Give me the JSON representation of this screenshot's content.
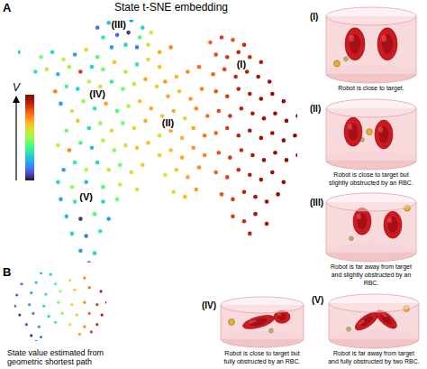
{
  "chart_data": [
    {
      "type": "scatter",
      "panel": "A",
      "title": "State t-SNE embedding",
      "tick_labels": false,
      "color_label": "V",
      "color_range": [
        0,
        1
      ],
      "points": [
        [
          0,
          86,
          0.3
        ],
        [
          28,
          96,
          0.15
        ],
        [
          32,
          98,
          0.25
        ],
        [
          36,
          97,
          0.1
        ],
        [
          40,
          99,
          0.2
        ],
        [
          44,
          96,
          0.3
        ],
        [
          30,
          92,
          0.35
        ],
        [
          35,
          93,
          0.12
        ],
        [
          39,
          94,
          0.05
        ],
        [
          43,
          92,
          0.4
        ],
        [
          47,
          94,
          0.55
        ],
        [
          33,
          88,
          0.2
        ],
        [
          38,
          89,
          0.3
        ],
        [
          42,
          88,
          0.15
        ],
        [
          46,
          89,
          0.6
        ],
        [
          8,
          84,
          0.45
        ],
        [
          12,
          86,
          0.3
        ],
        [
          16,
          83,
          0.55
        ],
        [
          20,
          85,
          0.2
        ],
        [
          24,
          87,
          0.6
        ],
        [
          28,
          84,
          0.4
        ],
        [
          50,
          86,
          0.7
        ],
        [
          54,
          88,
          0.75
        ],
        [
          6,
          78,
          0.35
        ],
        [
          10,
          79,
          0.6
        ],
        [
          14,
          77,
          0.25
        ],
        [
          18,
          80,
          0.5
        ],
        [
          22,
          78,
          0.85
        ],
        [
          26,
          80,
          0.3
        ],
        [
          30,
          79,
          0.45
        ],
        [
          34,
          82,
          0.65
        ],
        [
          38,
          78,
          0.5
        ],
        [
          42,
          81,
          0.35
        ],
        [
          46,
          83,
          0.6
        ],
        [
          50,
          80,
          0.65
        ],
        [
          13,
          70,
          0.75
        ],
        [
          17,
          72,
          0.4
        ],
        [
          21,
          71,
          0.3
        ],
        [
          25,
          74,
          0.55
        ],
        [
          29,
          72,
          0.6
        ],
        [
          33,
          74,
          0.35
        ],
        [
          37,
          71,
          0.45
        ],
        [
          41,
          73,
          0.55
        ],
        [
          45,
          75,
          0.7
        ],
        [
          49,
          72,
          0.62
        ],
        [
          15,
          65,
          0.2
        ],
        [
          19,
          62,
          0.6
        ],
        [
          23,
          66,
          0.5
        ],
        [
          27,
          63,
          0.35
        ],
        [
          31,
          65,
          0.7
        ],
        [
          35,
          62,
          0.4
        ],
        [
          39,
          64,
          0.55
        ],
        [
          43,
          66,
          0.65
        ],
        [
          47,
          63,
          0.7
        ],
        [
          17,
          54,
          0.45
        ],
        [
          21,
          58,
          0.65
        ],
        [
          25,
          55,
          0.3
        ],
        [
          29,
          57,
          0.5
        ],
        [
          33,
          54,
          0.6
        ],
        [
          37,
          57,
          0.45
        ],
        [
          41,
          55,
          0.62
        ],
        [
          45,
          58,
          0.68
        ],
        [
          14,
          48,
          0.55
        ],
        [
          18,
          46,
          0.75
        ],
        [
          22,
          49,
          0.4
        ],
        [
          26,
          47,
          0.25
        ],
        [
          30,
          50,
          0.55
        ],
        [
          34,
          46,
          0.5
        ],
        [
          38,
          48,
          0.6
        ],
        [
          42,
          47,
          0.65
        ],
        [
          46,
          49,
          0.66
        ],
        [
          16,
          38,
          0.2
        ],
        [
          20,
          41,
          0.35
        ],
        [
          24,
          38,
          0.55
        ],
        [
          28,
          41,
          0.3
        ],
        [
          32,
          38,
          0.6
        ],
        [
          36,
          40,
          0.45
        ],
        [
          40,
          37,
          0.58
        ],
        [
          44,
          40,
          0.63
        ],
        [
          14,
          33,
          0.3
        ],
        [
          19,
          31,
          0.5
        ],
        [
          24,
          33,
          0.25
        ],
        [
          30,
          31,
          0.4
        ],
        [
          36,
          32,
          0.55
        ],
        [
          42,
          30,
          0.6
        ],
        [
          15,
          26,
          0.2
        ],
        [
          20,
          25,
          0.35
        ],
        [
          25,
          27,
          0.1
        ],
        [
          30,
          25,
          0.3
        ],
        [
          35,
          26,
          0.45
        ],
        [
          17,
          19,
          0.25
        ],
        [
          22,
          18,
          0.05
        ],
        [
          27,
          20,
          0.4
        ],
        [
          32,
          18,
          0.2
        ],
        [
          19,
          12,
          0.3
        ],
        [
          24,
          11,
          0.15
        ],
        [
          29,
          13,
          0.35
        ],
        [
          22,
          5,
          0.2
        ],
        [
          27,
          4,
          0.3
        ],
        [
          25,
          0,
          0.15
        ],
        [
          52,
          74,
          0.72
        ],
        [
          56,
          76,
          0.68
        ],
        [
          60,
          78,
          0.74
        ],
        [
          64,
          80,
          0.78
        ],
        [
          53,
          68,
          0.7
        ],
        [
          57,
          70,
          0.66
        ],
        [
          61,
          67,
          0.72
        ],
        [
          65,
          71,
          0.76
        ],
        [
          51,
          60,
          0.65
        ],
        [
          55,
          62,
          0.7
        ],
        [
          59,
          59,
          0.62
        ],
        [
          63,
          63,
          0.75
        ],
        [
          67,
          60,
          0.78
        ],
        [
          50,
          52,
          0.6
        ],
        [
          54,
          54,
          0.72
        ],
        [
          58,
          51,
          0.68
        ],
        [
          62,
          55,
          0.7
        ],
        [
          66,
          52,
          0.77
        ],
        [
          50,
          44,
          0.62
        ],
        [
          54,
          46,
          0.66
        ],
        [
          58,
          43,
          0.7
        ],
        [
          62,
          47,
          0.73
        ],
        [
          66,
          44,
          0.75
        ],
        [
          52,
          36,
          0.58
        ],
        [
          56,
          38,
          0.65
        ],
        [
          60,
          35,
          0.7
        ],
        [
          64,
          39,
          0.74
        ],
        [
          55,
          29,
          0.6
        ],
        [
          59,
          27,
          0.66
        ],
        [
          63,
          30,
          0.72
        ],
        [
          68,
          90,
          0.8
        ],
        [
          72,
          92,
          0.85
        ],
        [
          76,
          91,
          0.82
        ],
        [
          80,
          89,
          0.88
        ],
        [
          70,
          85,
          0.83
        ],
        [
          74,
          84,
          0.86
        ],
        [
          78,
          86,
          0.9
        ],
        [
          82,
          84,
          0.88
        ],
        [
          86,
          82,
          0.92
        ],
        [
          69,
          77,
          0.8
        ],
        [
          73,
          79,
          0.84
        ],
        [
          77,
          76,
          0.88
        ],
        [
          81,
          78,
          0.9
        ],
        [
          85,
          76,
          0.93
        ],
        [
          89,
          74,
          0.95
        ],
        [
          70,
          70,
          0.82
        ],
        [
          74,
          68,
          0.86
        ],
        [
          78,
          71,
          0.89
        ],
        [
          82,
          69,
          0.92
        ],
        [
          86,
          67,
          0.95
        ],
        [
          90,
          69,
          0.96
        ],
        [
          94,
          66,
          0.98
        ],
        [
          71,
          62,
          0.83
        ],
        [
          75,
          60,
          0.87
        ],
        [
          79,
          63,
          0.9
        ],
        [
          83,
          61,
          0.93
        ],
        [
          87,
          59,
          0.96
        ],
        [
          91,
          61,
          0.97
        ],
        [
          95,
          58,
          0.99
        ],
        [
          99,
          60,
          1.0
        ],
        [
          70,
          53,
          0.8
        ],
        [
          74,
          55,
          0.85
        ],
        [
          78,
          52,
          0.9
        ],
        [
          82,
          54,
          0.93
        ],
        [
          86,
          51,
          0.95
        ],
        [
          90,
          53,
          0.97
        ],
        [
          94,
          50,
          0.98
        ],
        [
          98,
          52,
          1.0
        ],
        [
          71,
          45,
          0.82
        ],
        [
          75,
          43,
          0.86
        ],
        [
          79,
          46,
          0.88
        ],
        [
          83,
          44,
          0.92
        ],
        [
          87,
          42,
          0.95
        ],
        [
          91,
          45,
          0.97
        ],
        [
          95,
          42,
          0.99
        ],
        [
          99,
          44,
          1.0
        ],
        [
          70,
          37,
          0.8
        ],
        [
          74,
          35,
          0.84
        ],
        [
          78,
          38,
          0.88
        ],
        [
          82,
          36,
          0.91
        ],
        [
          86,
          34,
          0.94
        ],
        [
          90,
          37,
          0.96
        ],
        [
          94,
          33,
          0.98
        ],
        [
          72,
          28,
          0.82
        ],
        [
          76,
          26,
          0.86
        ],
        [
          80,
          29,
          0.9
        ],
        [
          84,
          27,
          0.92
        ],
        [
          88,
          25,
          0.95
        ],
        [
          92,
          28,
          0.97
        ],
        [
          76,
          19,
          0.85
        ],
        [
          80,
          17,
          0.88
        ],
        [
          84,
          20,
          0.92
        ],
        [
          88,
          16,
          0.94
        ],
        [
          82,
          12,
          0.9
        ]
      ],
      "annotations": [
        {
          "text": "(I)",
          "x": 79,
          "y": 81
        },
        {
          "text": "(II)",
          "x": 53,
          "y": 57
        },
        {
          "text": "(III)",
          "x": 35.5,
          "y": 97
        },
        {
          "text": "(IV)",
          "x": 28,
          "y": 69
        },
        {
          "text": "(V)",
          "x": 24,
          "y": 27
        }
      ]
    },
    {
      "type": "scatter",
      "panel": "B",
      "tick_labels": false,
      "color_range": [
        0,
        1
      ],
      "caption": [
        "State value estimated from",
        "geometric shortest path"
      ],
      "points": [
        [
          30,
          95,
          0.2
        ],
        [
          40,
          93,
          0.3
        ],
        [
          10,
          80,
          0.15
        ],
        [
          25,
          82,
          0.25
        ],
        [
          45,
          80,
          0.4
        ],
        [
          60,
          85,
          0.6
        ],
        [
          75,
          88,
          0.75
        ],
        [
          5,
          65,
          0.1
        ],
        [
          20,
          68,
          0.2
        ],
        [
          35,
          66,
          0.35
        ],
        [
          50,
          70,
          0.5
        ],
        [
          65,
          72,
          0.65
        ],
        [
          80,
          75,
          0.8
        ],
        [
          92,
          70,
          0.9
        ],
        [
          3,
          50,
          0.1
        ],
        [
          18,
          52,
          0.2
        ],
        [
          33,
          50,
          0.3
        ],
        [
          48,
          55,
          0.45
        ],
        [
          62,
          52,
          0.6
        ],
        [
          75,
          55,
          0.75
        ],
        [
          88,
          52,
          0.85
        ],
        [
          98,
          55,
          0.95
        ],
        [
          8,
          38,
          0.05
        ],
        [
          22,
          40,
          0.15
        ],
        [
          38,
          36,
          0.3
        ],
        [
          52,
          40,
          0.45
        ],
        [
          67,
          38,
          0.65
        ],
        [
          80,
          40,
          0.8
        ],
        [
          93,
          38,
          0.92
        ],
        [
          15,
          25,
          0.1
        ],
        [
          28,
          22,
          0.2
        ],
        [
          45,
          28,
          0.35
        ],
        [
          60,
          25,
          0.55
        ],
        [
          75,
          22,
          0.75
        ],
        [
          88,
          25,
          0.88
        ],
        [
          20,
          10,
          0.05
        ],
        [
          30,
          8,
          0.15
        ],
        [
          70,
          12,
          0.7
        ],
        [
          82,
          15,
          0.85
        ],
        [
          25,
          2,
          0.1
        ]
      ]
    }
  ],
  "illustrations": [
    {
      "label": "(I)",
      "caption": [
        "Robot is close to target."
      ]
    },
    {
      "label": "(II)",
      "caption": [
        "Robot is close to target but",
        "slightly obstructed by an RBC."
      ]
    },
    {
      "label": "(III)",
      "caption": [
        "Robot is far away from target",
        "and slightly obstructed by an",
        "RBC."
      ]
    },
    {
      "label": "(IV)",
      "caption": [
        "Robot is close to target but",
        "fully obstructed by an RBC."
      ]
    },
    {
      "label": "(V)",
      "caption": [
        "Robot is far away from target",
        "and fully obstructed by two RBC."
      ]
    }
  ]
}
